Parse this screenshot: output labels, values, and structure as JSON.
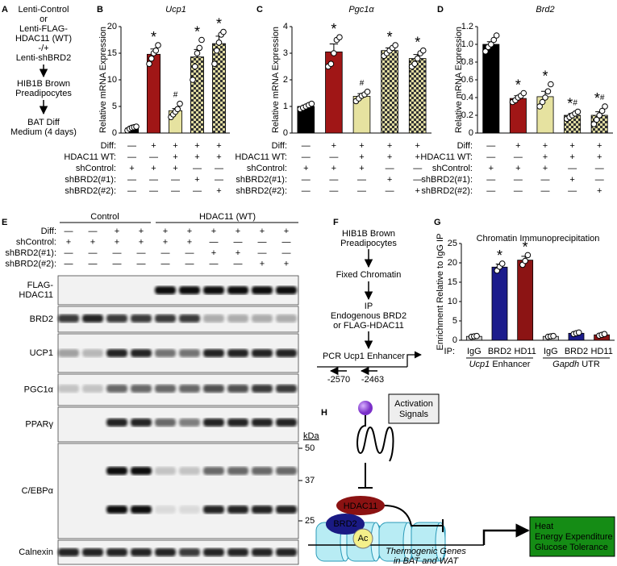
{
  "panel_labels": [
    "A",
    "B",
    "C",
    "D",
    "E",
    "F",
    "G",
    "H"
  ],
  "panel_a": {
    "step1": [
      "Lenti-Control",
      "or",
      "Lenti-FLAG-",
      "HDAC11 (WT)",
      "-/+",
      "Lenti-shBRD2"
    ],
    "step2": [
      "HIB1B Brown",
      "Preadipocytes"
    ],
    "step3": [
      "BAT Diff",
      "Medium (4 days)"
    ]
  },
  "chart_data": [
    {
      "type": "bar",
      "title": "Ucp1",
      "y_label": "Relative mRNA Expression",
      "values": [
        0.9,
        14.8,
        4.2,
        14.3,
        16.8
      ],
      "errors": [
        0.2,
        1.0,
        0.4,
        1.4,
        1.4
      ],
      "points": [
        [
          0.5,
          0.8,
          1.0,
          1.1,
          1.2
        ],
        [
          13.0,
          14.0,
          15.0,
          15.5,
          16.5
        ],
        [
          3.0,
          3.5,
          4.0,
          4.5,
          5.5
        ],
        [
          10.0,
          12.5,
          15.0,
          16.0,
          17.5
        ],
        [
          13.0,
          15.5,
          17.0,
          18.5,
          19.0
        ]
      ],
      "colors": [
        "#000000",
        "#a01616",
        "#e6e2a0",
        "checkered",
        "checkered"
      ],
      "significance": [
        null,
        "*",
        "#",
        "*",
        "*"
      ],
      "ylim": [
        0,
        20
      ],
      "yticks": [
        0,
        5,
        10,
        15,
        20
      ],
      "conditions": {
        "labels": [
          "Diff:",
          "HDAC11 WT:",
          "shControl:",
          "shBRD2(#1):",
          "shBRD2(#2):"
        ],
        "rows": [
          [
            "—",
            "+",
            "+",
            "+",
            "+"
          ],
          [
            "—",
            "—",
            "+",
            "+",
            "+"
          ],
          [
            "+",
            "+",
            "+",
            "—",
            "—"
          ],
          [
            "—",
            "—",
            "—",
            "+",
            "—"
          ],
          [
            "—",
            "—",
            "—",
            "—",
            "+"
          ]
        ]
      }
    },
    {
      "type": "bar",
      "title": "Pgc1α",
      "y_label": "Relative mRNA Expression",
      "values": [
        1.0,
        3.05,
        1.38,
        3.1,
        2.8
      ],
      "errors": [
        0.05,
        0.3,
        0.1,
        0.1,
        0.15
      ],
      "points": [
        [
          0.9,
          0.95,
          1.0,
          1.05,
          1.1
        ],
        [
          2.5,
          2.6,
          3.0,
          3.5,
          3.6
        ],
        [
          1.2,
          1.3,
          1.4,
          1.45,
          1.55
        ],
        [
          2.9,
          3.0,
          3.1,
          3.2,
          3.3
        ],
        [
          2.5,
          2.6,
          2.8,
          3.0,
          3.1
        ]
      ],
      "colors": [
        "#000000",
        "#a01616",
        "#e6e2a0",
        "checkered",
        "checkered"
      ],
      "significance": [
        null,
        "*",
        "#",
        "*",
        "*"
      ],
      "ylim": [
        0,
        4
      ],
      "yticks": [
        0,
        1,
        2,
        3,
        4
      ],
      "conditions": {
        "labels": [
          "Diff:",
          "HDAC11 WT:",
          "shControl:",
          "shBRD2(#1):",
          "shBRD2(#2):"
        ],
        "rows": [
          [
            "—",
            "+",
            "+",
            "+",
            "+"
          ],
          [
            "—",
            "—",
            "+",
            "+",
            "+"
          ],
          [
            "+",
            "+",
            "+",
            "—",
            "—"
          ],
          [
            "—",
            "—",
            "—",
            "+",
            "—"
          ],
          [
            "—",
            "—",
            "—",
            "—",
            "+"
          ]
        ]
      }
    },
    {
      "type": "bar",
      "title": "Brd2",
      "y_label": "Relative mRNA Expression",
      "values": [
        1.0,
        0.39,
        0.41,
        0.2,
        0.2
      ],
      "errors": [
        0.03,
        0.03,
        0.06,
        0.02,
        0.04
      ],
      "points": [
        [
          0.92,
          0.97,
          1.0,
          1.05,
          1.1
        ],
        [
          0.35,
          0.37,
          0.4,
          0.42,
          0.45
        ],
        [
          0.3,
          0.35,
          0.4,
          0.47,
          0.55
        ],
        [
          0.16,
          0.18,
          0.2,
          0.22,
          0.24
        ],
        [
          0.1,
          0.15,
          0.2,
          0.25,
          0.3
        ]
      ],
      "colors": [
        "#000000",
        "#a01616",
        "#e6e2a0",
        "checkered",
        "checkered"
      ],
      "significance": [
        null,
        "*",
        "*",
        "*#",
        "*#"
      ],
      "ylim": [
        0,
        1.2
      ],
      "yticks": [
        0,
        0.2,
        0.4,
        0.6,
        0.8,
        {
          "value": 1,
          "label": "1.0"
        },
        1.2
      ],
      "conditions": {
        "labels": [
          "Diff:",
          "HDAC11 WT:",
          "shControl:",
          "shBRD2(#1):",
          "shBRD2(#2):"
        ],
        "rows": [
          [
            "—",
            "+",
            "+",
            "+",
            "+"
          ],
          [
            "—",
            "—",
            "+",
            "+",
            "+"
          ],
          [
            "+",
            "+",
            "+",
            "—",
            "—"
          ],
          [
            "—",
            "—",
            "—",
            "+",
            "—"
          ],
          [
            "—",
            "—",
            "—",
            "—",
            "+"
          ]
        ]
      }
    },
    {
      "type": "bar",
      "title": "Chromatin Immunoprecipitation",
      "y_label": "Enrichment Relative to IgG IP",
      "x_prefix": "IP:",
      "categories": [
        "IgG",
        "BRD2",
        "HD11",
        "IgG",
        "BRD2",
        "HD11"
      ],
      "groups": [
        "Ucp1 Enhancer",
        "Gapdh UTR"
      ],
      "values": [
        1.0,
        18.9,
        20.7,
        1.0,
        1.8,
        1.4
      ],
      "errors": [
        0.1,
        0.8,
        1.0,
        0.1,
        0.2,
        0.2
      ],
      "points": [
        [
          0.9,
          1.0,
          1.1
        ],
        [
          18.0,
          19.0,
          19.8
        ],
        [
          19.5,
          20.5,
          22.0
        ],
        [
          0.9,
          1.0,
          1.1
        ],
        [
          1.6,
          1.8,
          2.0
        ],
        [
          1.2,
          1.4,
          1.6
        ]
      ],
      "colors": [
        "#d0d0d0",
        "#1c1c8c",
        "#8c1414",
        "#d0d0d0",
        "#1c1c8c",
        "#8c1414"
      ],
      "significance": [
        null,
        "*",
        "*",
        null,
        null,
        null
      ],
      "ylim": [
        0,
        25
      ],
      "yticks": [
        0,
        5,
        10,
        15,
        20,
        25
      ]
    }
  ],
  "panel_e": {
    "groups": [
      "Control",
      "HDAC11 (WT)"
    ],
    "conditions": {
      "labels": [
        "Diff:",
        "shControl:",
        "shBRD2(#1):",
        "shBRD2(#2):"
      ],
      "rows": [
        [
          "—",
          "—",
          "+",
          "+",
          "+",
          "+",
          "+",
          "+",
          "+",
          "+"
        ],
        [
          "+",
          "+",
          "+",
          "+",
          "+",
          "+",
          "—",
          "—",
          "—",
          "—"
        ],
        [
          "—",
          "—",
          "—",
          "—",
          "—",
          "—",
          "+",
          "+",
          "—",
          "—"
        ],
        [
          "—",
          "—",
          "—",
          "—",
          "—",
          "—",
          "—",
          "—",
          "+",
          "+"
        ]
      ]
    },
    "blots": [
      "FLAG-\nHDAC11",
      "BRD2",
      "UCP1",
      "PGC1α",
      "PPARγ",
      "C/EBPα",
      "Calnexin"
    ],
    "kda_unit": "kDa",
    "kda_markers": [
      "50",
      "37",
      "25"
    ]
  },
  "panel_f": {
    "step1": [
      "HIB1B Brown",
      "Preadipocytes"
    ],
    "step2": "Fixed Chromatin",
    "step3": [
      "IP",
      "Endogenous BRD2",
      "or FLAG-HDAC11"
    ],
    "step4": "PCR Ucp1 Enhancer",
    "primers": [
      "-2570",
      "-2463"
    ]
  },
  "panel_h": {
    "signal": [
      "Activation",
      "Signals"
    ],
    "hdac": "HDAC11",
    "brd": "BRD2",
    "ac": "Ac",
    "genes": [
      "Thermogenic Genes",
      "in BAT and WAT"
    ],
    "outcomes": [
      "Heat",
      "Energy Expenditure",
      "Glucose Tolerance"
    ]
  }
}
